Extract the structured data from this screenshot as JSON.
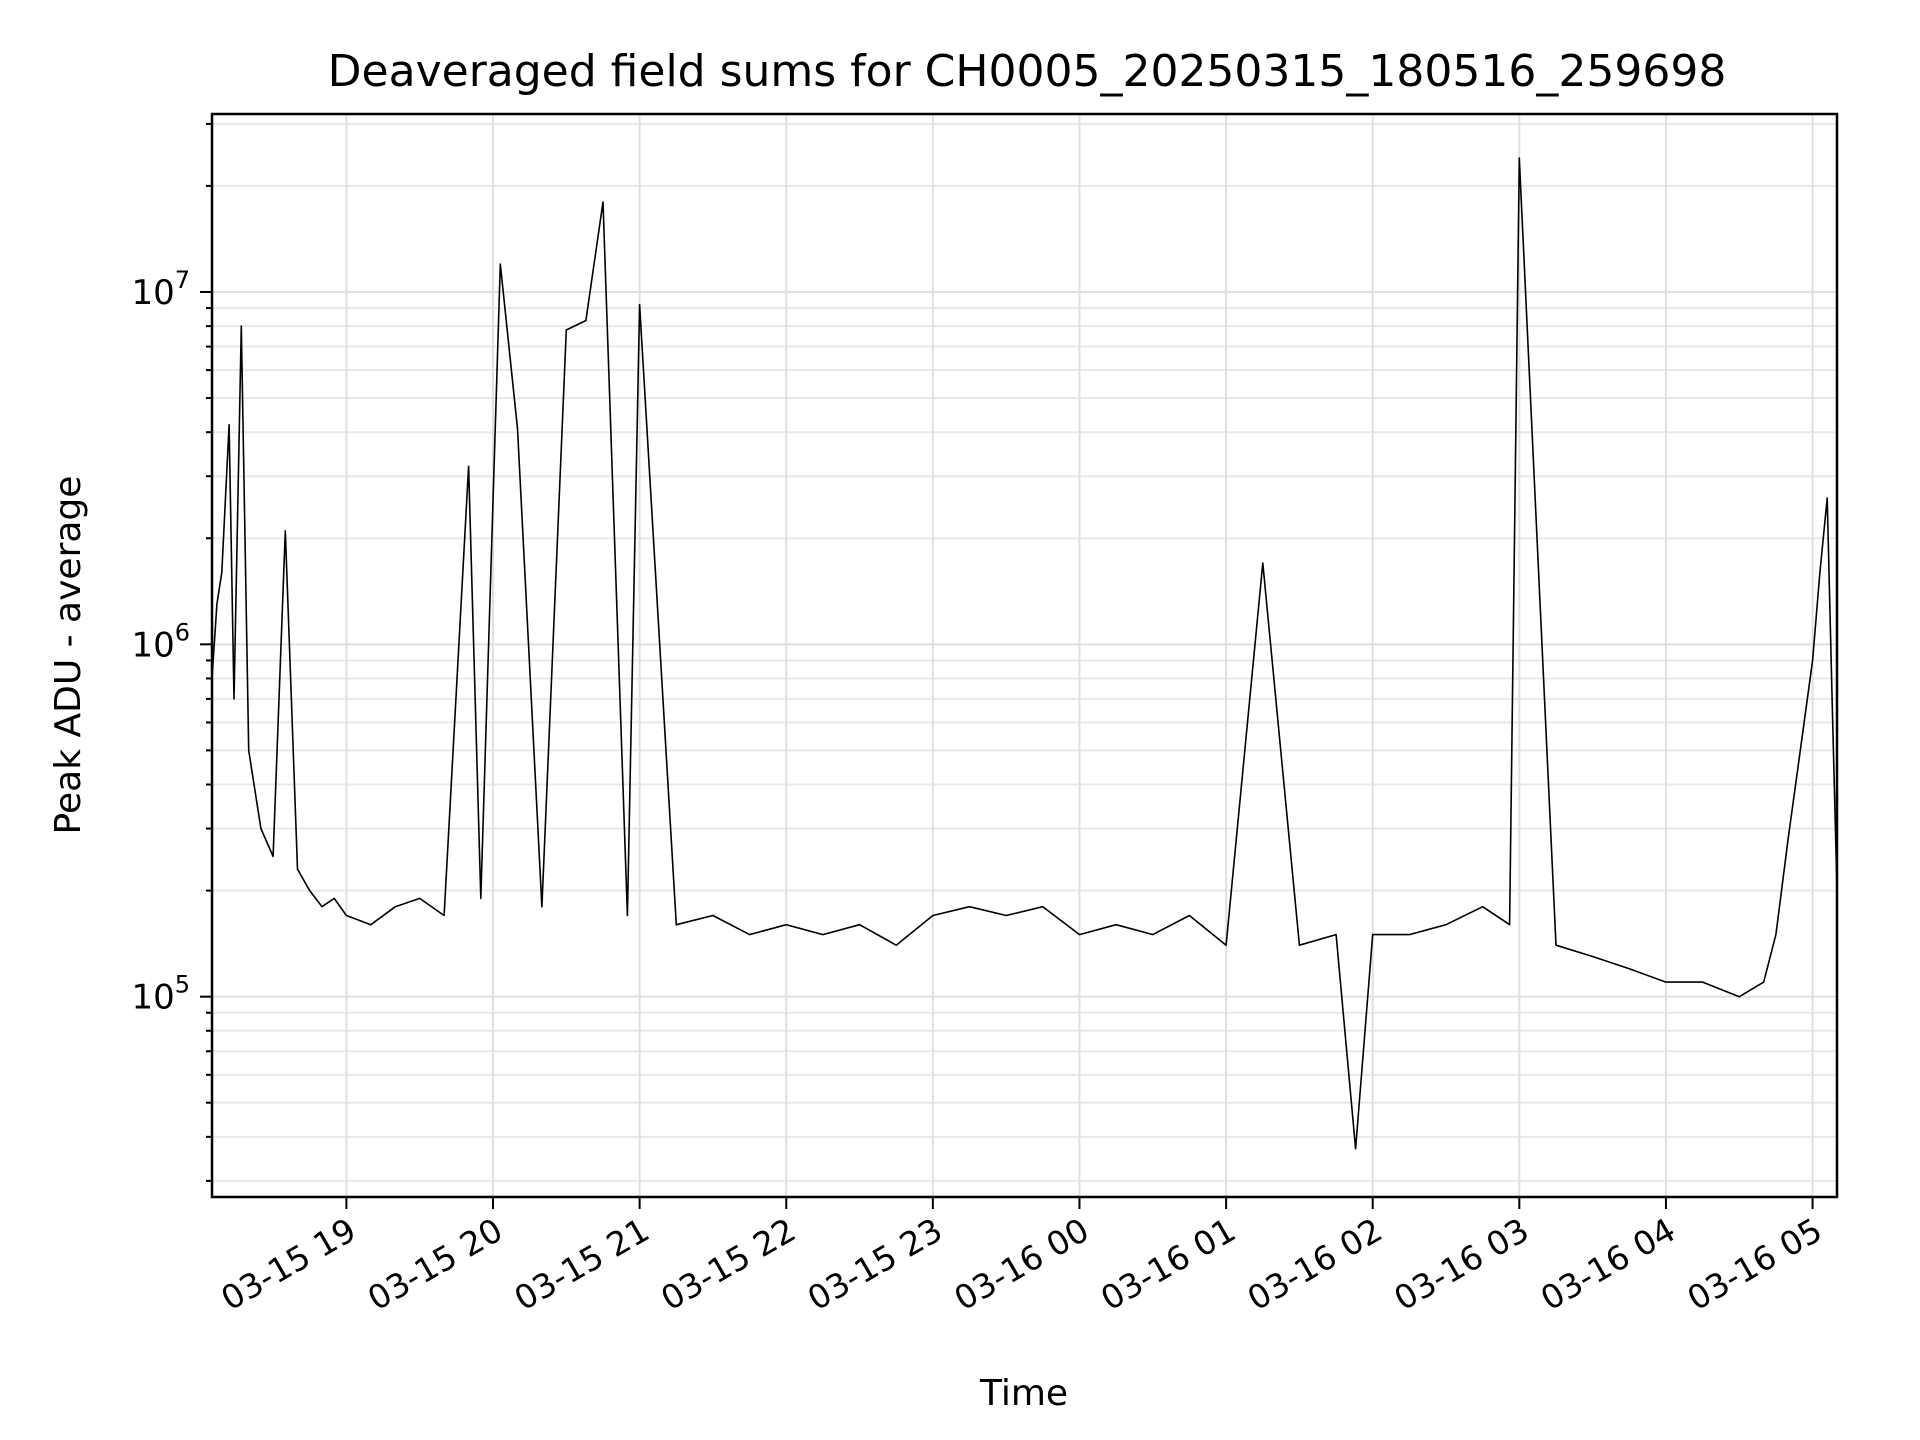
{
  "chart_data": {
    "type": "line",
    "title": "Deaveraged field sums for CH0005_20250315_180516_259698",
    "xlabel": "Time",
    "ylabel": "Peak ADU - average",
    "yscale": "log",
    "grid": true,
    "line_color": "#000000",
    "xlim": [
      "2025-03-15 18:05",
      "2025-03-16 05:10"
    ],
    "ylim": [
      27000,
      32000000
    ],
    "x_ticks": [
      {
        "value": "2025-03-15 19:00",
        "label": "03-15 19"
      },
      {
        "value": "2025-03-15 20:00",
        "label": "03-15 20"
      },
      {
        "value": "2025-03-15 21:00",
        "label": "03-15 21"
      },
      {
        "value": "2025-03-15 22:00",
        "label": "03-15 22"
      },
      {
        "value": "2025-03-15 23:00",
        "label": "03-15 23"
      },
      {
        "value": "2025-03-16 00:00",
        "label": "03-16 00"
      },
      {
        "value": "2025-03-16 01:00",
        "label": "03-16 01"
      },
      {
        "value": "2025-03-16 02:00",
        "label": "03-16 02"
      },
      {
        "value": "2025-03-16 03:00",
        "label": "03-16 03"
      },
      {
        "value": "2025-03-16 04:00",
        "label": "03-16 04"
      },
      {
        "value": "2025-03-16 05:00",
        "label": "03-16 05"
      }
    ],
    "y_ticks": [
      {
        "value": 100000,
        "base": "10",
        "exp": "5"
      },
      {
        "value": 1000000,
        "base": "10",
        "exp": "6"
      },
      {
        "value": 10000000,
        "base": "10",
        "exp": "7"
      }
    ],
    "series": [
      {
        "x": [
          "2025-03-15 18:05",
          "2025-03-15 18:07",
          "2025-03-15 18:09",
          "2025-03-15 18:12",
          "2025-03-15 18:14",
          "2025-03-15 18:17",
          "2025-03-15 18:20",
          "2025-03-15 18:25",
          "2025-03-15 18:30",
          "2025-03-15 18:35",
          "2025-03-15 18:40",
          "2025-03-15 18:45",
          "2025-03-15 18:50",
          "2025-03-15 18:55",
          "2025-03-15 19:00",
          "2025-03-15 19:10",
          "2025-03-15 19:20",
          "2025-03-15 19:30",
          "2025-03-15 19:40",
          "2025-03-15 19:50",
          "2025-03-15 19:55",
          "2025-03-15 20:03",
          "2025-03-15 20:10",
          "2025-03-15 20:20",
          "2025-03-15 20:30",
          "2025-03-15 20:38",
          "2025-03-15 20:45",
          "2025-03-15 20:55",
          "2025-03-15 21:00",
          "2025-03-15 21:15",
          "2025-03-15 21:30",
          "2025-03-15 21:45",
          "2025-03-15 22:00",
          "2025-03-15 22:15",
          "2025-03-15 22:30",
          "2025-03-15 22:45",
          "2025-03-15 23:00",
          "2025-03-15 23:15",
          "2025-03-15 23:30",
          "2025-03-15 23:45",
          "2025-03-16 00:00",
          "2025-03-16 00:15",
          "2025-03-16 00:30",
          "2025-03-16 00:45",
          "2025-03-16 01:00",
          "2025-03-16 01:15",
          "2025-03-16 01:30",
          "2025-03-16 01:45",
          "2025-03-16 01:53",
          "2025-03-16 02:00",
          "2025-03-16 02:15",
          "2025-03-16 02:30",
          "2025-03-16 02:45",
          "2025-03-16 02:56",
          "2025-03-16 03:00",
          "2025-03-16 03:15",
          "2025-03-16 03:30",
          "2025-03-16 03:45",
          "2025-03-16 04:00",
          "2025-03-16 04:15",
          "2025-03-16 04:30",
          "2025-03-16 04:40",
          "2025-03-16 04:45",
          "2025-03-16 04:50",
          "2025-03-16 04:55",
          "2025-03-16 05:00",
          "2025-03-16 05:03",
          "2025-03-16 05:06",
          "2025-03-16 05:08",
          "2025-03-16 05:10"
        ],
        "y": [
          800000,
          1300000,
          1600000,
          4200000,
          700000,
          8000000,
          500000,
          300000,
          250000,
          2100000,
          230000,
          200000,
          180000,
          190000,
          170000,
          160000,
          180000,
          190000,
          170000,
          3200000,
          190000,
          12000000,
          4100000,
          180000,
          7800000,
          8300000,
          18000000,
          170000,
          9200000,
          160000,
          170000,
          150000,
          160000,
          150000,
          160000,
          140000,
          170000,
          180000,
          170000,
          180000,
          150000,
          160000,
          150000,
          170000,
          140000,
          1700000,
          140000,
          150000,
          37000,
          150000,
          150000,
          160000,
          180000,
          160000,
          24000000,
          140000,
          130000,
          120000,
          110000,
          110000,
          100000,
          110000,
          150000,
          280000,
          500000,
          900000,
          1600000,
          2600000,
          700000,
          200000
        ]
      }
    ]
  }
}
